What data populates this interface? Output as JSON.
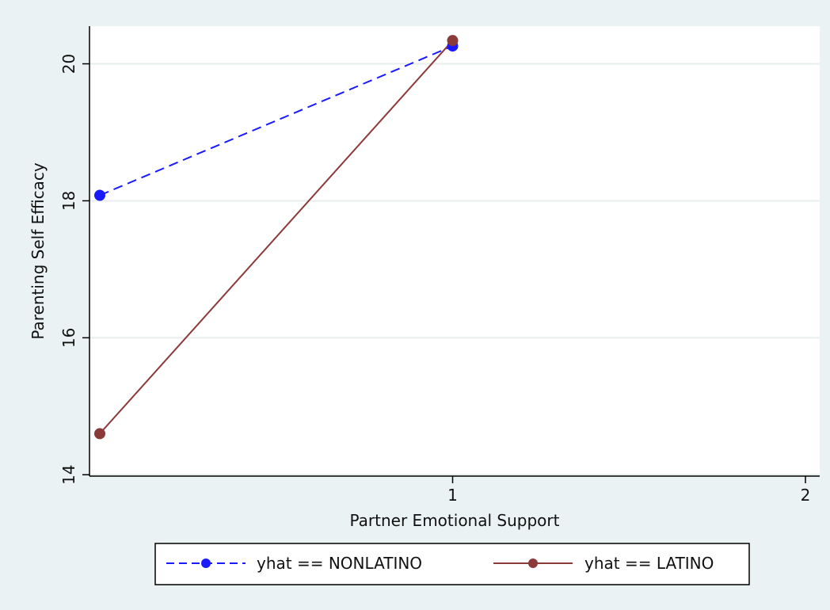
{
  "chart_data": {
    "type": "line",
    "title": "",
    "xlabel": "Partner Emotional Support",
    "ylabel": "Parenting Self Efficacy",
    "xlim": [
      0,
      2
    ],
    "ylim": [
      13.98,
      20.55
    ],
    "x_ticks": [
      "1",
      "2"
    ],
    "y_ticks": [
      "14",
      "16",
      "18",
      "20"
    ],
    "grid": "horizontal",
    "legend_position": "bottom",
    "series": [
      {
        "name": "yhat == NONLATINO",
        "color": "#1a1aff",
        "line_style": "dashed",
        "x": [
          0,
          1
        ],
        "y": [
          18.08,
          20.26
        ]
      },
      {
        "name": "yhat == LATINO",
        "color": "#8b3a3a",
        "line_style": "solid",
        "x": [
          0,
          1
        ],
        "y": [
          14.6,
          20.34
        ]
      }
    ]
  }
}
